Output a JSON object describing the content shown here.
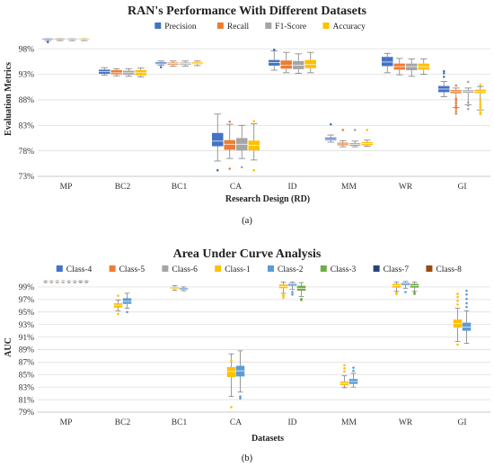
{
  "chart_data": [
    {
      "type": "box",
      "title": "RAN's Performance With Different Datasets",
      "xlabel": "Research Design (RD)",
      "ylabel": "Evaluation Metrics",
      "yticks": [
        "73%",
        "78%",
        "83%",
        "88%",
        "93%",
        "98%"
      ],
      "ylim": [
        73,
        100.5
      ],
      "grid": true,
      "legend_position": "top",
      "caption": "(a)",
      "categories": [
        "MP",
        "BC2",
        "BC1",
        "CA",
        "ID",
        "MM",
        "WR",
        "GI"
      ],
      "series": [
        {
          "name": "Precision",
          "color": "#4472C4",
          "boxes": [
            [
              99.6,
              99.8,
              99.95,
              100,
              100
            ],
            [
              92.8,
              93.1,
              93.5,
              93.9,
              94.3
            ],
            [
              94.8,
              95.0,
              95.2,
              95.4,
              95.6
            ],
            [
              76,
              78.9,
              79.9,
              81.5,
              85.2
            ],
            [
              93.8,
              94.7,
              95.3,
              95.8,
              97.6
            ],
            [
              79.7,
              80.1,
              80.35,
              80.6,
              81.1
            ],
            [
              93.3,
              94.6,
              95.4,
              96.4,
              97.1
            ],
            [
              88.6,
              89.5,
              90.1,
              90.7,
              91.6
            ]
          ],
          "outliers": [
            [
              99.3
            ],
            [],
            [
              94.4
            ],
            [
              74.2
            ],
            [
              97.8
            ],
            [
              83.2
            ],
            [],
            [
              92.5,
              93.2,
              93.6
            ]
          ]
        },
        {
          "name": "Recall",
          "color": "#ED7D31",
          "boxes": [
            [
              99.6,
              99.8,
              99.95,
              100,
              100
            ],
            [
              92.7,
              93.0,
              93.3,
              93.8,
              94.1
            ],
            [
              94.6,
              94.9,
              95.1,
              95.3,
              95.6
            ],
            [
              76.5,
              78.2,
              79.3,
              80.1,
              83.2
            ],
            [
              93.3,
              94.1,
              94.8,
              95.7,
              97.3
            ],
            [
              78.8,
              79.1,
              79.35,
              79.6,
              80.0
            ],
            [
              92.9,
              93.9,
              94.5,
              95.1,
              96.1
            ],
            [
              86.5,
              89.3,
              89.6,
              89.9,
              90.3
            ]
          ],
          "outliers": [
            [],
            [],
            [],
            [
              74.5,
              83.7
            ],
            [],
            [
              82.1
            ],
            [],
            [
              85.3,
              85.8,
              86.3,
              86.8,
              87.3,
              87.8,
              88.2,
              90.8
            ]
          ]
        },
        {
          "name": "F1-Score",
          "color": "#A5A5A5",
          "boxes": [
            [
              99.6,
              99.8,
              99.95,
              100,
              100
            ],
            [
              92.6,
              92.9,
              93.3,
              93.7,
              94.1
            ],
            [
              94.6,
              94.9,
              95.1,
              95.3,
              95.6
            ],
            [
              76.5,
              78.1,
              79.3,
              80.5,
              83.0
            ],
            [
              93.2,
              94.0,
              94.8,
              95.6,
              97.0
            ],
            [
              78.8,
              79.0,
              79.25,
              79.5,
              79.9
            ],
            [
              92.6,
              93.8,
              94.5,
              95.1,
              96.0
            ],
            [
              87.0,
              89.4,
              89.7,
              89.9,
              90.3
            ]
          ],
          "outliers": [
            [],
            [],
            [],
            [
              74.8
            ],
            [],
            [
              82.1
            ],
            [],
            [
              86.2,
              86.9,
              87.5,
              91.5
            ]
          ]
        },
        {
          "name": "Accuracy",
          "color": "#FFC000",
          "boxes": [
            [
              99.6,
              99.8,
              99.95,
              100,
              100
            ],
            [
              92.5,
              92.8,
              93.3,
              93.8,
              94.2
            ],
            [
              94.7,
              95.0,
              95.2,
              95.4,
              95.6
            ],
            [
              76.2,
              78.1,
              79.1,
              80.0,
              83.3
            ],
            [
              93.3,
              94.2,
              94.9,
              95.8,
              97.3
            ],
            [
              78.9,
              79.1,
              79.4,
              79.7,
              80.1
            ],
            [
              93.0,
              93.9,
              94.5,
              95.1,
              96.0
            ],
            [
              86.0,
              89.3,
              89.6,
              90.0,
              90.6
            ]
          ],
          "outliers": [
            [],
            [],
            [],
            [
              74.2,
              83.8
            ],
            [],
            [
              82.1
            ],
            [],
            [
              85.2,
              85.6,
              86.1,
              86.6,
              87.1,
              87.6,
              88.1,
              90.9
            ]
          ]
        }
      ]
    },
    {
      "type": "box",
      "title": "Area Under Curve Analysis",
      "xlabel": "Datasets",
      "ylabel": "AUC",
      "yticks": [
        "79%",
        "81%",
        "83%",
        "85%",
        "87%",
        "89%",
        "91%",
        "93%",
        "95%",
        "97%",
        "99%"
      ],
      "ylim": [
        79,
        100
      ],
      "grid": true,
      "legend_position": "top",
      "caption": "(b)",
      "categories": [
        "MP",
        "BC2",
        "BC1",
        "CA",
        "ID",
        "MM",
        "WR",
        "GI"
      ],
      "legend": [
        {
          "name": "Class-4",
          "color": "#4472C4"
        },
        {
          "name": "Class-5",
          "color": "#ED7D31"
        },
        {
          "name": "Class-6",
          "color": "#A5A5A5"
        },
        {
          "name": "Class-1",
          "color": "#FFC000"
        },
        {
          "name": "Class-2",
          "color": "#5B9BD5"
        },
        {
          "name": "Class-3",
          "color": "#70AD47"
        },
        {
          "name": "Class-7",
          "color": "#264478"
        },
        {
          "name": "Class-8",
          "color": "#9E480E"
        }
      ],
      "groups": [
        {
          "category": "MP",
          "boxes": [
            {
              "color": "#4472C4",
              "s": [
                99.7,
                99.85,
                99.95,
                100,
                100
              ]
            },
            {
              "color": "#ED7D31",
              "s": [
                99.7,
                99.85,
                99.95,
                100,
                100
              ]
            },
            {
              "color": "#A5A5A5",
              "s": [
                99.7,
                99.85,
                99.95,
                100,
                100
              ]
            },
            {
              "color": "#FFC000",
              "s": [
                99.7,
                99.85,
                99.95,
                100,
                100
              ]
            },
            {
              "color": "#5B9BD5",
              "s": [
                99.7,
                99.85,
                99.95,
                100,
                100
              ]
            },
            {
              "color": "#70AD47",
              "s": [
                99.7,
                99.85,
                99.95,
                100,
                100
              ]
            },
            {
              "color": "#264478",
              "s": [
                99.7,
                99.85,
                99.95,
                100,
                100
              ]
            },
            {
              "color": "#9E480E",
              "s": [
                99.7,
                99.85,
                99.95,
                100,
                100
              ]
            }
          ]
        },
        {
          "category": "BC2",
          "boxes": [
            {
              "color": "#FFC000",
              "s": [
                95.2,
                95.7,
                96.1,
                96.4,
                96.9
              ],
              "o": [
                94.7,
                97.6
              ]
            },
            {
              "color": "#5B9BD5",
              "s": [
                95.6,
                96.3,
                96.7,
                97.2,
                98.0
              ],
              "o": [
                95.0
              ]
            }
          ]
        },
        {
          "category": "BC1",
          "boxes": [
            {
              "color": "#FFC000",
              "s": [
                98.5,
                98.7,
                98.85,
                99.0,
                99.2
              ]
            },
            {
              "color": "#5B9BD5",
              "s": [
                98.4,
                98.55,
                98.7,
                98.85,
                99.0
              ]
            }
          ]
        },
        {
          "category": "CA",
          "boxes": [
            {
              "color": "#FFC000",
              "s": [
                81.5,
                84.6,
                85.5,
                86.2,
                88.3
              ],
              "o": [
                79.8,
                87.2
              ]
            },
            {
              "color": "#5B9BD5",
              "s": [
                82.2,
                84.7,
                85.6,
                86.4,
                88.8
              ],
              "o": [
                81.2,
                81.5
              ]
            }
          ]
        },
        {
          "category": "ID",
          "boxes": [
            {
              "color": "#FFC000",
              "s": [
                98.0,
                98.8,
                99.1,
                99.4,
                99.8
              ],
              "o": [
                97.3,
                97.6,
                97.9
              ]
            },
            {
              "color": "#5B9BD5",
              "s": [
                98.6,
                99.2,
                99.45,
                99.6,
                99.8
              ],
              "o": [
                97.8,
                98.2
              ]
            },
            {
              "color": "#70AD47",
              "s": [
                97.5,
                98.4,
                98.8,
                99.2,
                99.7
              ],
              "o": [
                96.9,
                97.1
              ]
            }
          ]
        },
        {
          "category": "MM",
          "boxes": [
            {
              "color": "#FFC000",
              "s": [
                82.9,
                83.3,
                83.6,
                83.9,
                84.8
              ],
              "o": [
                85.5,
                86.0,
                86.5
              ]
            },
            {
              "color": "#5B9BD5",
              "s": [
                83.0,
                83.5,
                83.9,
                84.3,
                85.2
              ],
              "o": [
                85.6,
                86.1
              ]
            }
          ]
        },
        {
          "category": "WR",
          "boxes": [
            {
              "color": "#FFC000",
              "s": [
                98.3,
                98.9,
                99.2,
                99.5,
                99.8
              ],
              "o": [
                97.9,
                98.1
              ]
            },
            {
              "color": "#5B9BD5",
              "s": [
                98.8,
                99.3,
                99.55,
                99.7,
                99.9
              ],
              "o": [
                98.2
              ]
            },
            {
              "color": "#70AD47",
              "s": [
                98.3,
                98.9,
                99.2,
                99.5,
                99.8
              ],
              "o": [
                97.9,
                98.1
              ]
            }
          ]
        },
        {
          "category": "GI",
          "boxes": [
            {
              "color": "#FFC000",
              "s": [
                90.3,
                92.5,
                93.2,
                93.8,
                95.6
              ],
              "o": [
                89.8,
                96.2,
                96.8,
                97.4,
                97.9
              ]
            },
            {
              "color": "#5B9BD5",
              "s": [
                90.0,
                92.0,
                92.6,
                93.3,
                95.2
              ],
              "o": [
                95.8,
                96.4,
                97.1,
                97.8,
                98.4
              ]
            }
          ]
        }
      ]
    }
  ]
}
